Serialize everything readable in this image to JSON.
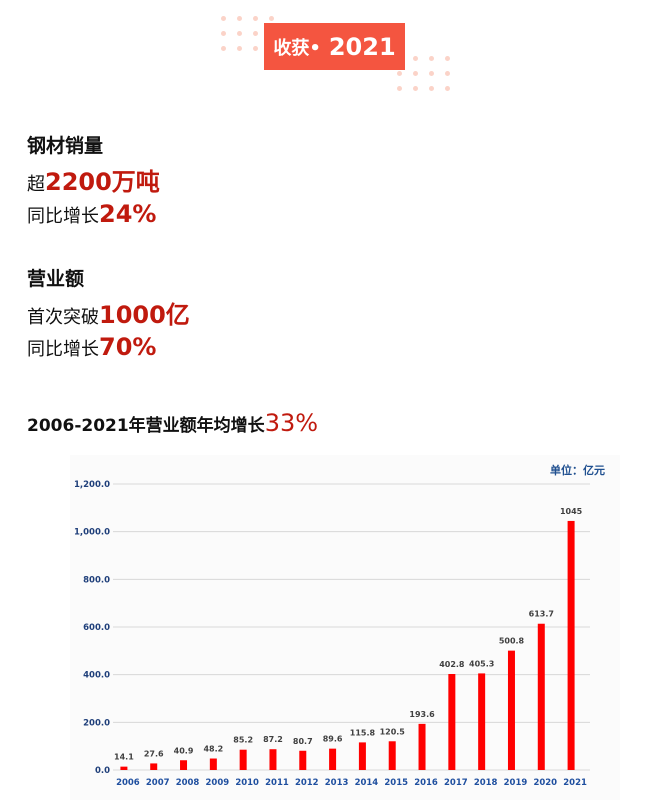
{
  "badge": {
    "label": "收获•",
    "year": "2021"
  },
  "steel": {
    "title": "钢材销量",
    "line1_prefix": "超",
    "line1_value": "2200万吨",
    "line2_prefix": "同比增长",
    "line2_value": "24%"
  },
  "revenue": {
    "title": "营业额",
    "line1_prefix": "首次突破",
    "line1_value": "1000亿",
    "line2_prefix": "同比增长",
    "line2_value": "70%"
  },
  "growth": {
    "prefix": "2006-2021年营业额年均增长",
    "value": "33%"
  },
  "colors": {
    "accent": "#f45540",
    "highlight": "#c01a0e",
    "bar": "#ff0000",
    "axis_text": "#1f3f7a"
  },
  "chart_data": {
    "type": "bar",
    "unit_label": "单位：亿元",
    "categories": [
      "2006",
      "2007",
      "2008",
      "2009",
      "2010",
      "2011",
      "2012",
      "2013",
      "2014",
      "2015",
      "2016",
      "2017",
      "2018",
      "2019",
      "2020",
      "2021"
    ],
    "values": [
      14.1,
      27.6,
      40.9,
      48.2,
      85.2,
      87.2,
      80.7,
      89.6,
      115.8,
      120.5,
      193.6,
      402.8,
      405.3,
      500.8,
      613.7,
      1045
    ],
    "data_labels": [
      "14.1",
      "27.6",
      "40.9",
      "48.2",
      "85.2",
      "87.2",
      "80.7",
      "89.6",
      "115.8",
      "120.5",
      "193.6",
      "402.8",
      "405.3",
      "500.8",
      "613.7",
      "1045"
    ],
    "yticks": [
      "0.0",
      "200.0",
      "400.0",
      "600.0",
      "800.0",
      "1,000.0",
      "1,200.0"
    ],
    "ylim": [
      0,
      1200
    ],
    "grid": true
  }
}
